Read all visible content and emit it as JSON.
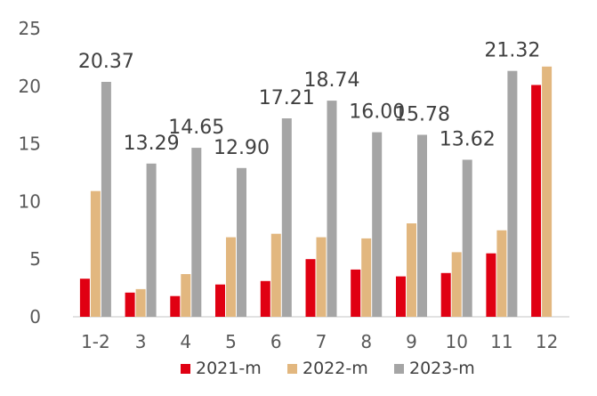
{
  "chart_data": {
    "type": "bar",
    "categories": [
      "1-2",
      "3",
      "4",
      "5",
      "6",
      "7",
      "8",
      "9",
      "10",
      "11",
      "12"
    ],
    "series": [
      {
        "name": "2021-m",
        "color": "#e00012",
        "values": [
          3.3,
          2.1,
          1.8,
          2.8,
          3.1,
          5.0,
          4.1,
          3.5,
          3.8,
          5.5,
          20.1
        ]
      },
      {
        "name": "2022-m",
        "color": "#e2b77f",
        "values": [
          10.9,
          2.4,
          3.7,
          6.9,
          7.2,
          6.9,
          6.8,
          8.1,
          5.6,
          7.5,
          21.7
        ]
      },
      {
        "name": "2023-m",
        "color": "#a5a5a5",
        "values": [
          20.37,
          13.29,
          14.65,
          12.9,
          17.21,
          18.74,
          16.0,
          15.78,
          13.62,
          21.32,
          null
        ]
      }
    ],
    "data_labels": {
      "series_index": 2,
      "labels": [
        "20.37",
        "13.29",
        "14.65",
        "12.90",
        "17.21",
        "18.74",
        "16.00",
        "15.78",
        "13.62",
        "21.32",
        ""
      ]
    },
    "ylim": [
      0,
      25
    ],
    "yticks": [
      "0",
      "5",
      "10",
      "15",
      "20",
      "25"
    ],
    "ytick_values": [
      0,
      5,
      10,
      15,
      20,
      25
    ],
    "grid": false,
    "legend": {
      "placement": "bottom-center"
    }
  }
}
